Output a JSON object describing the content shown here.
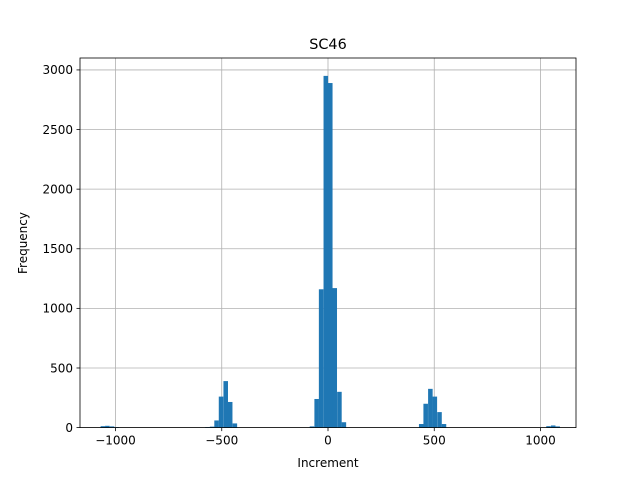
{
  "chart_data": {
    "type": "bar",
    "title": "SC46",
    "xlabel": "Increment",
    "ylabel": "Frequency",
    "xlim": [
      -1167,
      1167
    ],
    "ylim": [
      0,
      3100
    ],
    "xticks": [
      -1000,
      -500,
      0,
      500,
      1000
    ],
    "xtick_labels": [
      "−1000",
      "−500",
      "0",
      "500",
      "1000"
    ],
    "yticks": [
      0,
      500,
      1000,
      1500,
      2000,
      2500,
      3000
    ],
    "ytick_labels": [
      "0",
      "500",
      "1000",
      "1500",
      "2000",
      "2500",
      "3000"
    ],
    "grid": true,
    "bar_color": "#1f77b4",
    "bin_width": 21.4,
    "bins": [
      {
        "x": -1070,
        "count": 12
      },
      {
        "x": -1049,
        "count": 15
      },
      {
        "x": -1027,
        "count": 10
      },
      {
        "x": -1006,
        "count": 4
      },
      {
        "x": -578,
        "count": 4
      },
      {
        "x": -556,
        "count": 8
      },
      {
        "x": -535,
        "count": 60
      },
      {
        "x": -514,
        "count": 260
      },
      {
        "x": -492,
        "count": 390
      },
      {
        "x": -471,
        "count": 215
      },
      {
        "x": -449,
        "count": 35
      },
      {
        "x": -86,
        "count": 10
      },
      {
        "x": -64,
        "count": 240
      },
      {
        "x": -43,
        "count": 1160
      },
      {
        "x": -21,
        "count": 2950
      },
      {
        "x": 0,
        "count": 2890
      },
      {
        "x": 21,
        "count": 1170
      },
      {
        "x": 43,
        "count": 300
      },
      {
        "x": 64,
        "count": 45
      },
      {
        "x": 428,
        "count": 30
      },
      {
        "x": 449,
        "count": 200
      },
      {
        "x": 471,
        "count": 325
      },
      {
        "x": 492,
        "count": 260
      },
      {
        "x": 514,
        "count": 130
      },
      {
        "x": 535,
        "count": 30
      },
      {
        "x": 1027,
        "count": 12
      },
      {
        "x": 1049,
        "count": 18
      },
      {
        "x": 1070,
        "count": 10
      }
    ]
  }
}
